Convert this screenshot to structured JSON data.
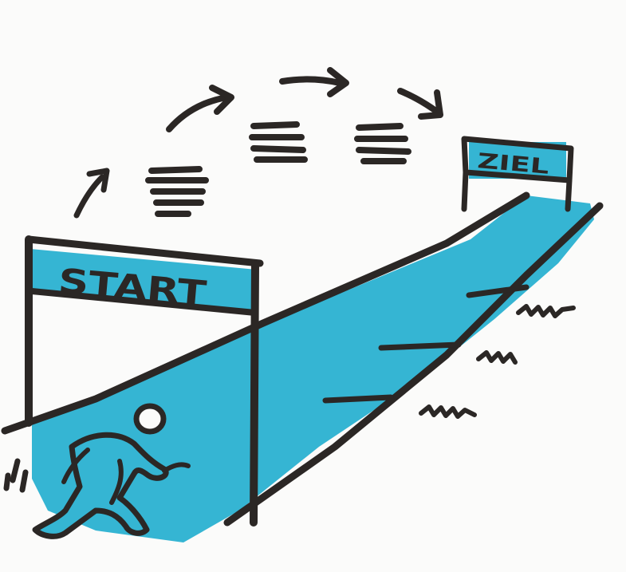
{
  "illustration": {
    "start_label": "START",
    "finish_label": "ZIEL"
  },
  "colors": {
    "track": "#35b5d3",
    "ink": "#2b2725",
    "background": "#fbfbfa"
  },
  "icons": [
    "runner-icon",
    "arrow-icon",
    "speed-lines-icon",
    "grass-tuft-icon"
  ]
}
